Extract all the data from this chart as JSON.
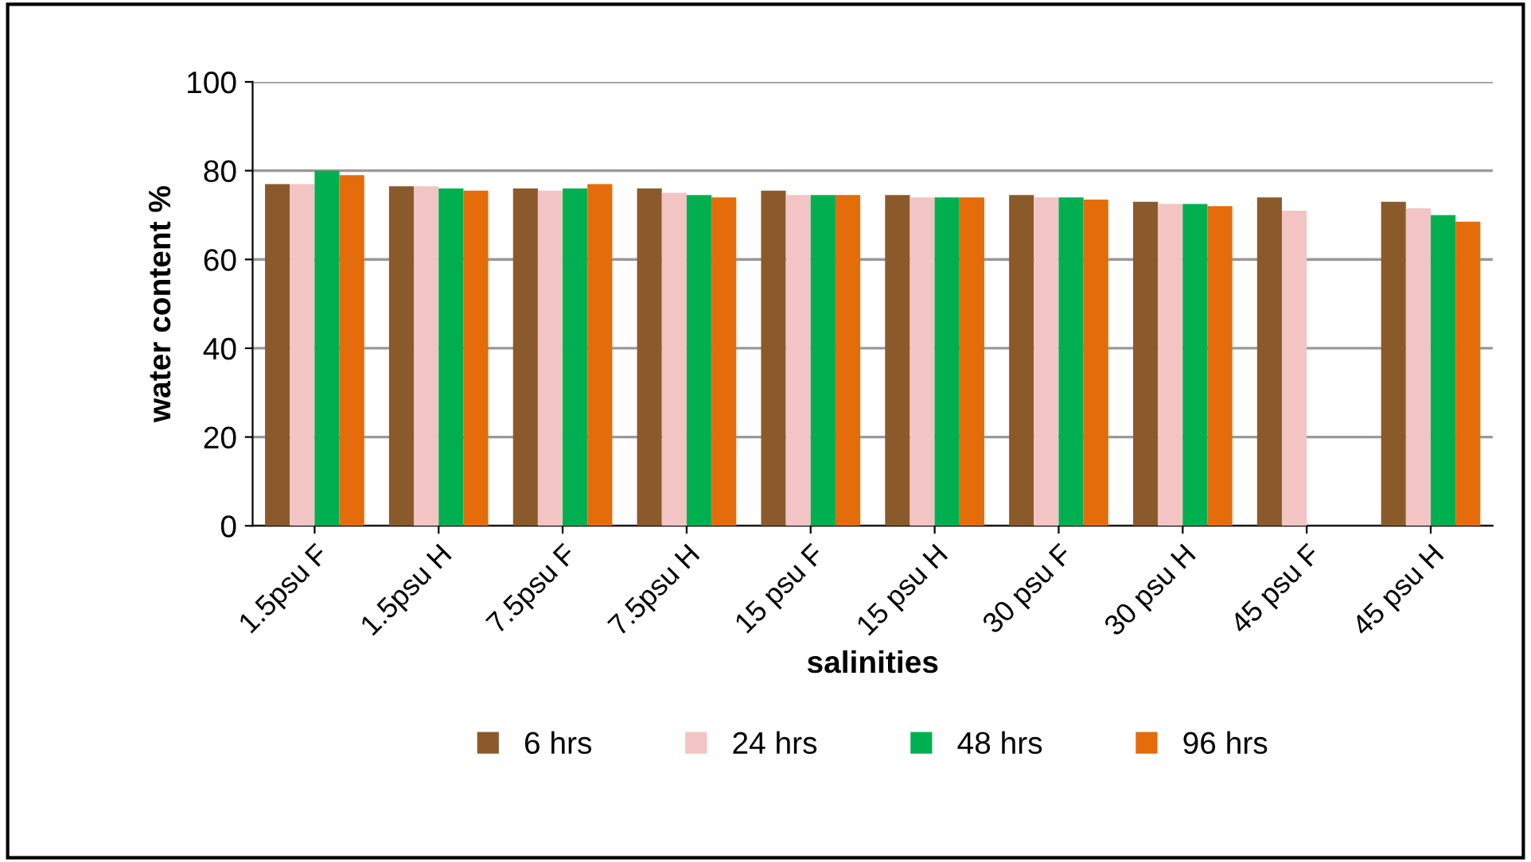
{
  "chart_data": {
    "type": "bar",
    "xlabel": "salinities",
    "ylabel": "water content %",
    "categories": [
      "1.5psu F",
      "1.5psu H",
      "7.5psu F",
      "7.5psu H",
      "15 psu F",
      "15 psu H",
      "30 psu F",
      "30 psu H",
      "45 psu F",
      "45 psu H"
    ],
    "series": [
      {
        "name": "6 hrs",
        "color": "#8b5a2b",
        "values": [
          77,
          76.5,
          76,
          76,
          75.5,
          74.5,
          74.5,
          73,
          74,
          73
        ]
      },
      {
        "name": "24 hrs",
        "color": "#f2c4c4",
        "values": [
          77,
          76.5,
          75.5,
          75,
          74.5,
          74,
          74,
          72.5,
          71,
          71.5
        ]
      },
      {
        "name": "48 hrs",
        "color": "#00b050",
        "values": [
          80,
          76,
          76,
          74.5,
          74.5,
          74,
          74,
          72.5,
          0,
          70
        ]
      },
      {
        "name": "96 hrs",
        "color": "#e46c0a",
        "values": [
          79,
          75.5,
          77,
          74,
          74.5,
          74,
          73.5,
          72,
          0,
          68.5
        ]
      }
    ],
    "ylim": [
      0,
      100
    ],
    "yticks": [
      0,
      20,
      40,
      60,
      80,
      100
    ],
    "grid": "y",
    "legend": "bottom"
  }
}
